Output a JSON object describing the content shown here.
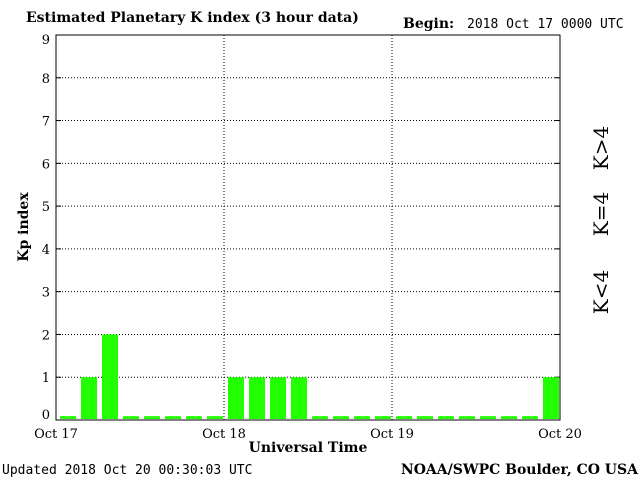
{
  "header": {
    "title": "Estimated Planetary K index (3 hour data)",
    "begin_label": "Begin:",
    "begin_value": "2018 Oct 17 0000 UTC"
  },
  "footer": {
    "updated": "Updated 2018 Oct 20 00:30:03 UTC",
    "source": "NOAA/SWPC Boulder, CO USA"
  },
  "legend": {
    "greater": "K>4",
    "equal": "K=4",
    "less": "K<4"
  },
  "colors": {
    "bar_low": "#22ff00",
    "k_equal_4": "#ffcc00",
    "k_greater_4": "#ff2200",
    "axis": "#000000",
    "grid": "#000000"
  },
  "chart_data": {
    "type": "bar",
    "title": "Estimated Planetary K index (3 hour data)",
    "xlabel": "Universal Time",
    "ylabel": "Kp index",
    "ylim": [
      0,
      9
    ],
    "yticks": [
      "0",
      "1",
      "2",
      "3",
      "4",
      "5",
      "6",
      "7",
      "8",
      "9"
    ],
    "xticks": [
      "Oct 17",
      "Oct 18",
      "Oct 19",
      "Oct 20"
    ],
    "grid": true,
    "interval_hours": 3,
    "values": [
      0,
      1,
      2,
      0,
      0,
      0,
      0,
      0,
      1,
      1,
      1,
      1,
      0,
      0,
      0,
      0,
      0,
      0,
      0,
      0,
      0,
      0,
      0,
      1
    ]
  }
}
